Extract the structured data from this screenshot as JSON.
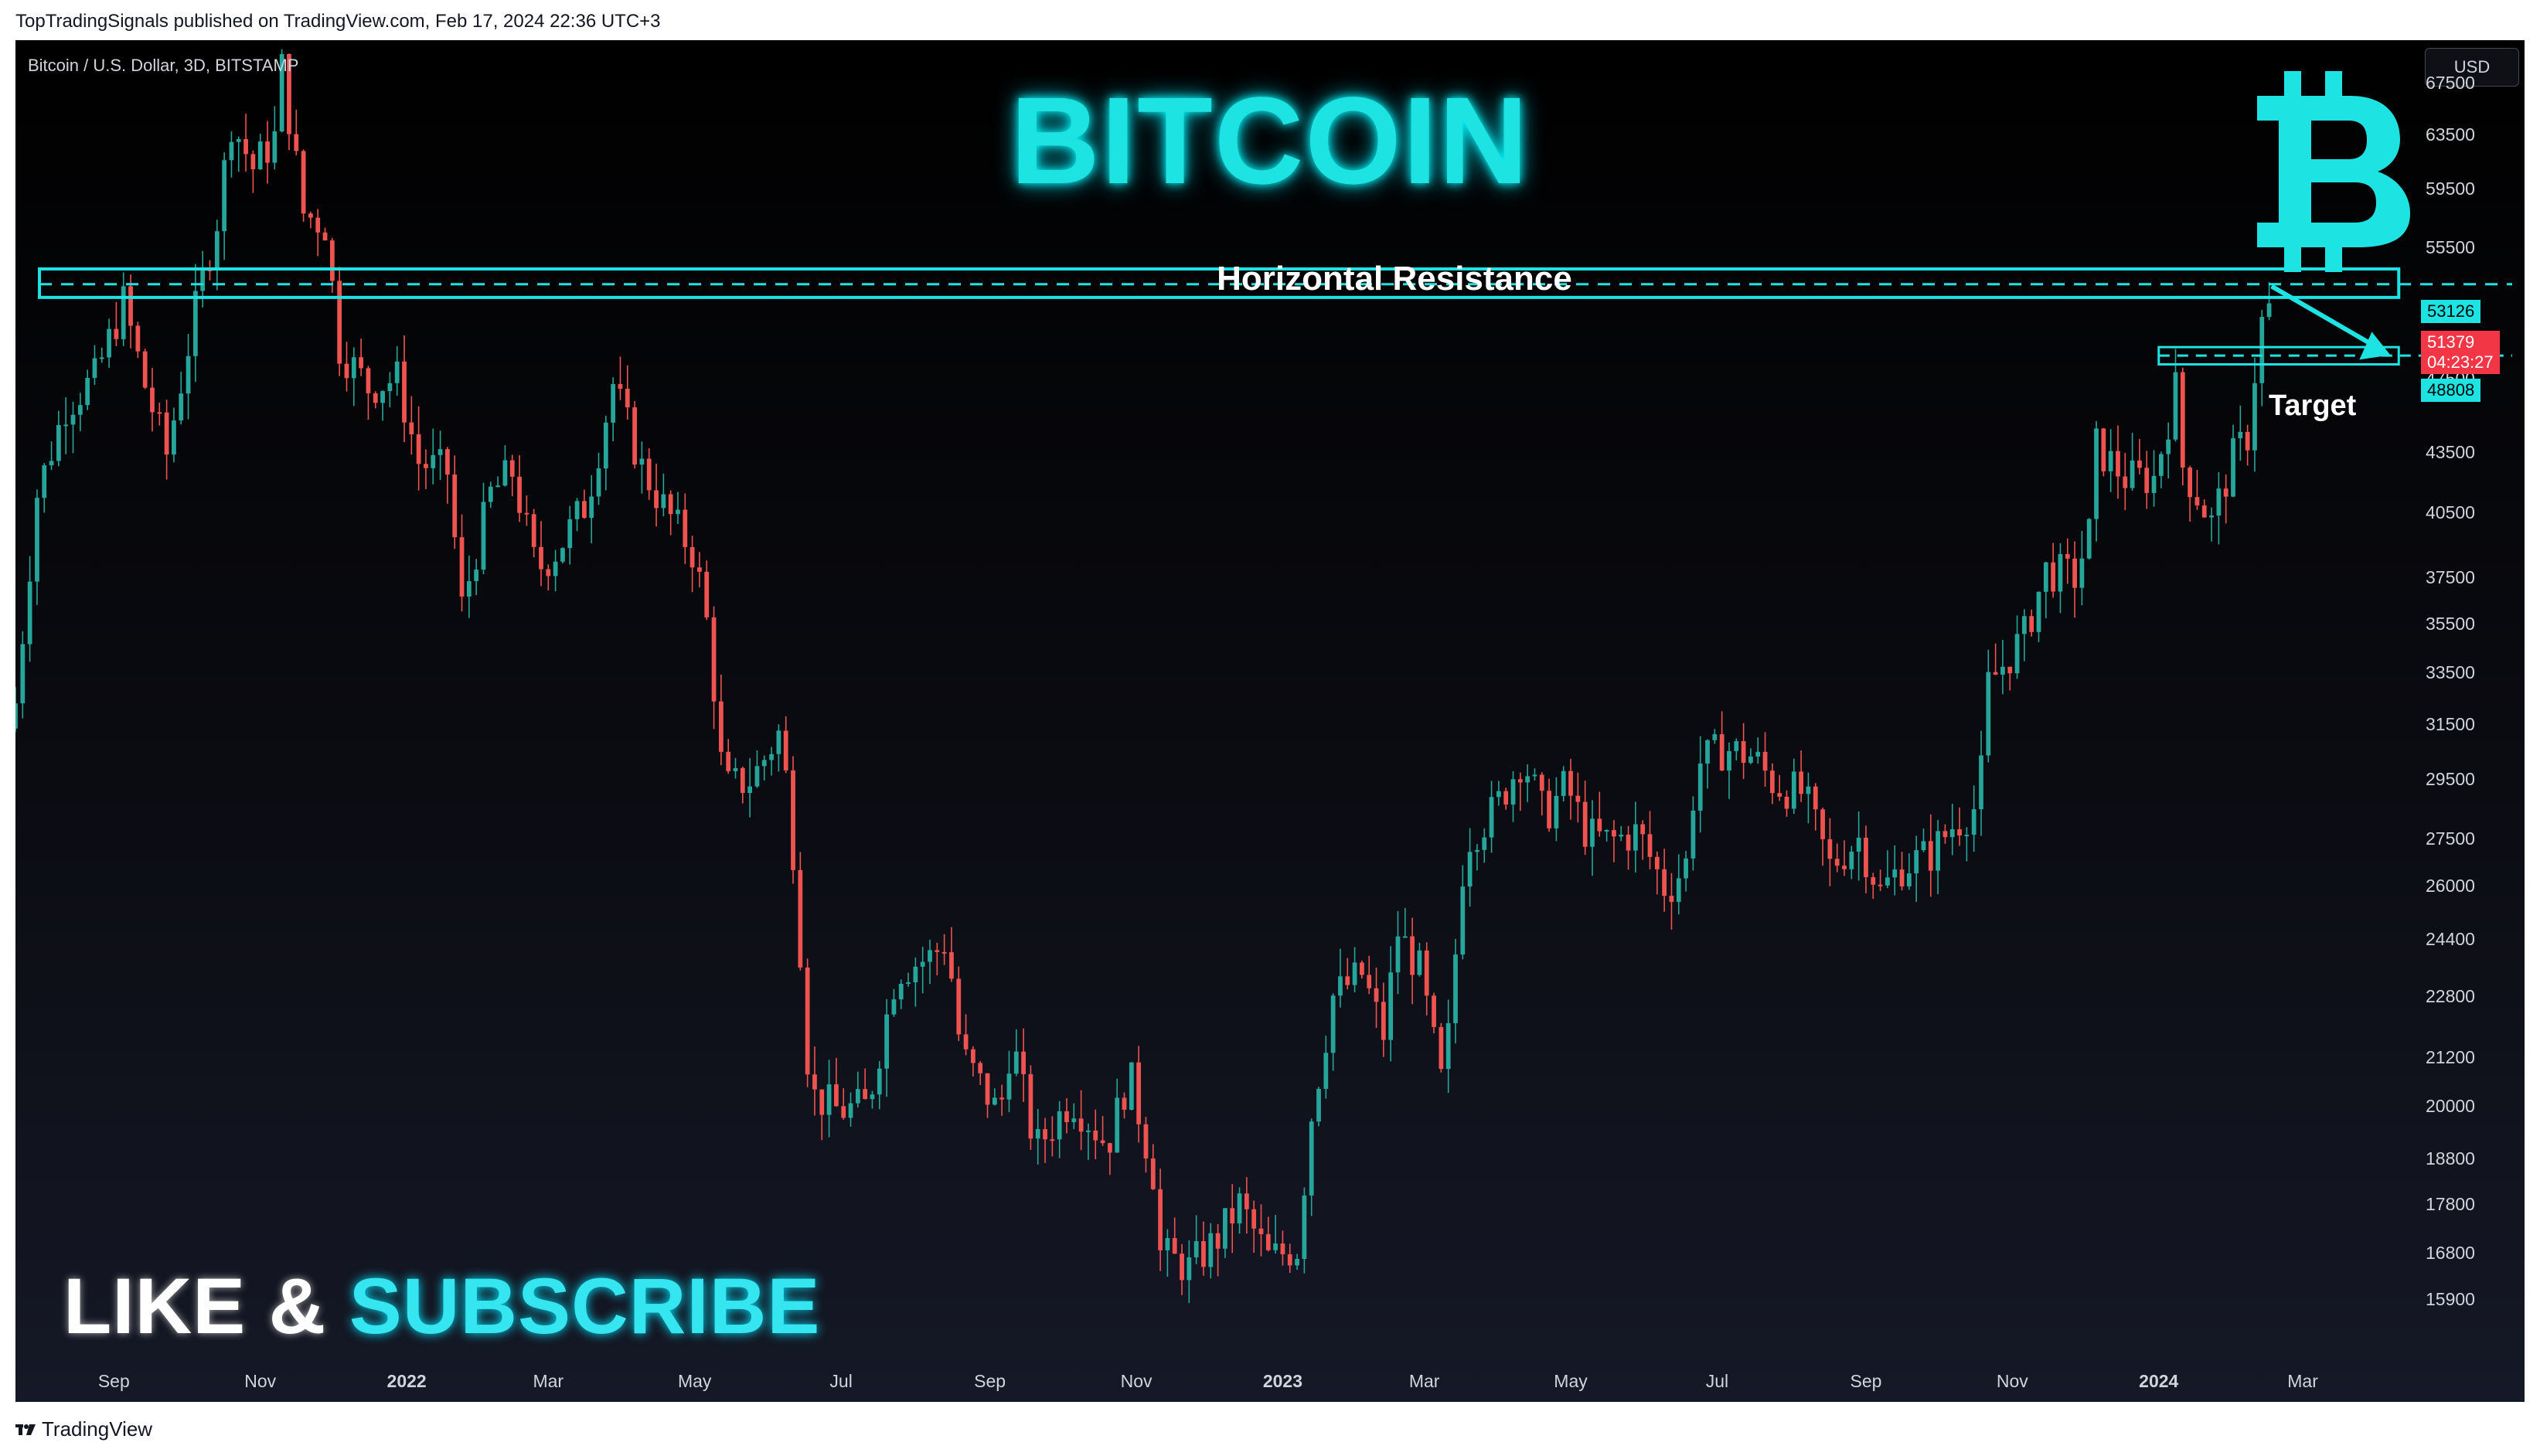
{
  "header": {
    "published_text": "TopTradingSignals published on TradingView.com, Feb 17, 2024 22:36 UTC+3"
  },
  "chart_header": {
    "symbol_text": "Bitcoin / U.S. Dollar, 3D, BITSTAMP",
    "currency_button": "USD"
  },
  "overlay": {
    "title": "BITCOIN",
    "resistance_label": "Horizontal Resistance",
    "target_label": "Target",
    "like_text": "LIKE &",
    "subscribe_text": "SUBSCRIBE",
    "logo_icon": "bitcoin-logo-icon"
  },
  "price_tags": {
    "resistance": "53126",
    "last_price": "51379",
    "countdown": "04:23:27",
    "target": "48808"
  },
  "footer": {
    "brand": "TradingView",
    "brand_icon": "tradingview-logo-icon"
  },
  "colors": {
    "up": "#26a69a",
    "down": "#ef5350",
    "accent": "#1ee3e3",
    "last_price_bg": "#f23645"
  },
  "chart_data": {
    "type": "candlestick",
    "title": "Bitcoin / U.S. Dollar, 3D, BITSTAMP",
    "ylabel": "USD",
    "y_scale": "log",
    "ylim": [
      14900,
      71000
    ],
    "y_ticks": [
      67500,
      63500,
      59500,
      55500,
      47500,
      43500,
      40500,
      37500,
      35500,
      33500,
      31500,
      29500,
      27500,
      26000,
      24400,
      22800,
      21200,
      20000,
      18800,
      17800,
      16800,
      15900
    ],
    "x_ticks": [
      {
        "label": "Sep",
        "bold": false
      },
      {
        "label": "Nov",
        "bold": false
      },
      {
        "label": "2022",
        "bold": true
      },
      {
        "label": "Mar",
        "bold": false
      },
      {
        "label": "May",
        "bold": false
      },
      {
        "label": "Jul",
        "bold": false
      },
      {
        "label": "Sep",
        "bold": false
      },
      {
        "label": "Nov",
        "bold": false
      },
      {
        "label": "2023",
        "bold": true
      },
      {
        "label": "Mar",
        "bold": false
      },
      {
        "label": "May",
        "bold": false
      },
      {
        "label": "Jul",
        "bold": false
      },
      {
        "label": "Sep",
        "bold": false
      },
      {
        "label": "Nov",
        "bold": false
      },
      {
        "label": "2024",
        "bold": true
      },
      {
        "label": "Mar",
        "bold": false
      }
    ],
    "x_range": [
      "2021-07-22",
      "2024-04-17"
    ],
    "x_tick_dates": [
      "2021-09-01",
      "2021-11-01",
      "2022-01-01",
      "2022-03-01",
      "2022-05-01",
      "2022-07-01",
      "2022-09-01",
      "2022-11-01",
      "2023-01-01",
      "2023-03-01",
      "2023-05-01",
      "2023-07-01",
      "2023-09-01",
      "2023-11-01",
      "2024-01-01",
      "2024-03-01"
    ],
    "levels": [
      {
        "name": "Horizontal Resistance",
        "value": 53126
      },
      {
        "name": "Target",
        "value": 48808
      }
    ],
    "resistance_zone": {
      "low": 52300,
      "high": 54100,
      "from": "2021-08-01",
      "to": "2024-04-10"
    },
    "target_zone": {
      "low": 48300,
      "high": 49300,
      "from": "2024-01-01",
      "to": "2024-04-10"
    },
    "series": [
      {
        "name": "BTCUSD 3D close",
        "points": [
          [
            "2021-07-22",
            32300
          ],
          [
            "2021-07-31",
            41400
          ],
          [
            "2021-08-12",
            46000
          ],
          [
            "2021-08-24",
            47500
          ],
          [
            "2021-09-05",
            52000
          ],
          [
            "2021-09-14",
            47100
          ],
          [
            "2021-09-23",
            43400
          ],
          [
            "2021-10-05",
            51500
          ],
          [
            "2021-10-14",
            57400
          ],
          [
            "2021-10-20",
            64500
          ],
          [
            "2021-10-29",
            61000
          ],
          [
            "2021-11-07",
            63200
          ],
          [
            "2021-11-10",
            68700
          ],
          [
            "2021-11-19",
            57800
          ],
          [
            "2021-11-28",
            57000
          ],
          [
            "2021-12-04",
            49300
          ],
          [
            "2021-12-16",
            47000
          ],
          [
            "2021-12-28",
            47500
          ],
          [
            "2022-01-06",
            43000
          ],
          [
            "2022-01-18",
            42500
          ],
          [
            "2022-01-24",
            36200
          ],
          [
            "2022-02-05",
            41400
          ],
          [
            "2022-02-14",
            42500
          ],
          [
            "2022-02-24",
            37800
          ],
          [
            "2022-03-05",
            38800
          ],
          [
            "2022-03-17",
            41000
          ],
          [
            "2022-03-28",
            47200
          ],
          [
            "2022-04-09",
            42700
          ],
          [
            "2022-04-18",
            40800
          ],
          [
            "2022-05-01",
            38500
          ],
          [
            "2022-05-07",
            35000
          ],
          [
            "2022-05-13",
            29200
          ],
          [
            "2022-05-25",
            29500
          ],
          [
            "2022-06-06",
            31300
          ],
          [
            "2022-06-12",
            26400
          ],
          [
            "2022-06-18",
            20300
          ],
          [
            "2022-06-30",
            19900
          ],
          [
            "2022-07-12",
            20000
          ],
          [
            "2022-07-24",
            23500
          ],
          [
            "2022-08-08",
            23900
          ],
          [
            "2022-08-14",
            24400
          ],
          [
            "2022-08-20",
            21300
          ],
          [
            "2022-09-05",
            19800
          ],
          [
            "2022-09-10",
            21700
          ],
          [
            "2022-09-20",
            19000
          ],
          [
            "2022-10-05",
            20200
          ],
          [
            "2022-10-20",
            19100
          ],
          [
            "2022-10-29",
            20800
          ],
          [
            "2022-11-08",
            18500
          ],
          [
            "2022-11-11",
            16800
          ],
          [
            "2022-11-23",
            16500
          ],
          [
            "2022-12-05",
            17100
          ],
          [
            "2022-12-14",
            17800
          ],
          [
            "2022-12-26",
            16700
          ],
          [
            "2023-01-07",
            16900
          ],
          [
            "2023-01-13",
            19800
          ],
          [
            "2023-01-22",
            22800
          ],
          [
            "2023-02-03",
            23400
          ],
          [
            "2023-02-12",
            21800
          ],
          [
            "2023-02-18",
            24600
          ],
          [
            "2023-02-27",
            23500
          ],
          [
            "2023-03-09",
            20300
          ],
          [
            "2023-03-15",
            24800
          ],
          [
            "2023-03-18",
            27400
          ],
          [
            "2023-03-30",
            28400
          ],
          [
            "2023-04-11",
            30300
          ],
          [
            "2023-04-20",
            28200
          ],
          [
            "2023-04-29",
            29300
          ],
          [
            "2023-05-08",
            27600
          ],
          [
            "2023-05-17",
            27400
          ],
          [
            "2023-05-29",
            27700
          ],
          [
            "2023-06-10",
            25800
          ],
          [
            "2023-06-19",
            26800
          ],
          [
            "2023-06-22",
            30000
          ],
          [
            "2023-07-04",
            30600
          ],
          [
            "2023-07-16",
            30300
          ],
          [
            "2023-07-25",
            29300
          ],
          [
            "2023-08-06",
            29000
          ],
          [
            "2023-08-17",
            26600
          ],
          [
            "2023-08-29",
            27500
          ],
          [
            "2023-09-07",
            25800
          ],
          [
            "2023-09-16",
            26600
          ],
          [
            "2023-09-28",
            27000
          ],
          [
            "2023-10-07",
            27900
          ],
          [
            "2023-10-16",
            28500
          ],
          [
            "2023-10-19",
            29700
          ],
          [
            "2023-10-22",
            33000
          ],
          [
            "2023-11-06",
            35000
          ],
          [
            "2023-11-15",
            37800
          ],
          [
            "2023-11-27",
            37500
          ],
          [
            "2023-12-03",
            39500
          ],
          [
            "2023-12-06",
            43800
          ],
          [
            "2023-12-18",
            42200
          ],
          [
            "2023-12-30",
            42200
          ],
          [
            "2024-01-08",
            46900
          ],
          [
            "2024-01-11",
            42800
          ],
          [
            "2024-01-23",
            40000
          ],
          [
            "2024-02-01",
            43200
          ],
          [
            "2024-02-07",
            44400
          ],
          [
            "2024-02-10",
            47800
          ],
          [
            "2024-02-14",
            51800
          ],
          [
            "2024-02-17",
            51379
          ]
        ]
      }
    ]
  }
}
